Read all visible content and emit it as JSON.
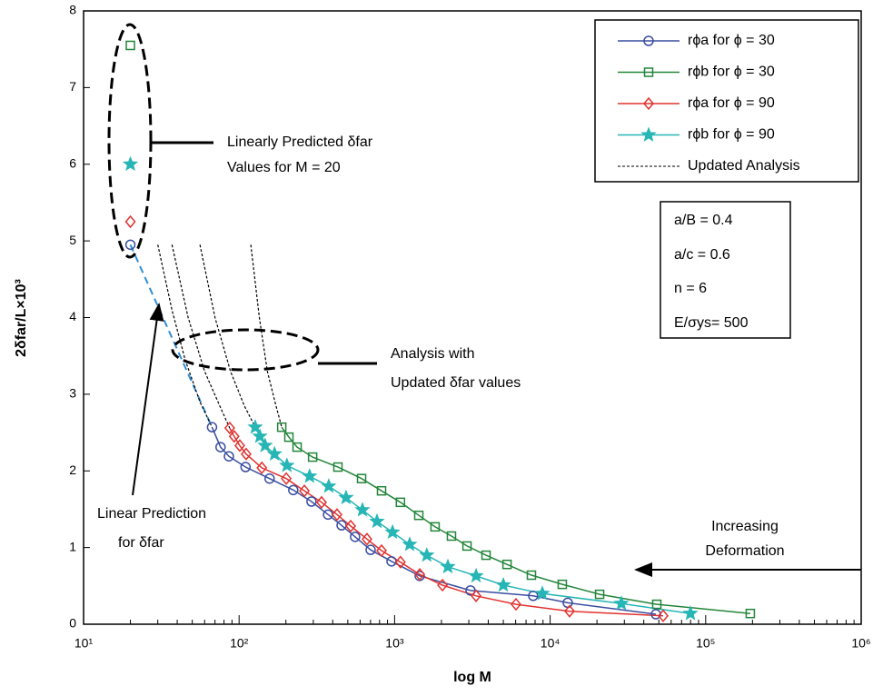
{
  "chart_data": {
    "type": "line",
    "x_label": "log M",
    "y_label": "2δfar/L×10³",
    "xscale": "log",
    "xlim": [
      10,
      1000000
    ],
    "xticks": [
      {
        "value": 10,
        "label": "10¹"
      },
      {
        "value": 100,
        "label": "10²"
      },
      {
        "value": 1000,
        "label": "10³"
      },
      {
        "value": 10000,
        "label": "10⁴"
      },
      {
        "value": 100000,
        "label": "10⁵"
      },
      {
        "value": 1000000,
        "label": "10⁶"
      }
    ],
    "ylim": [
      0,
      8
    ],
    "yticks": [
      0,
      1,
      2,
      3,
      4,
      5,
      6,
      7,
      8
    ],
    "predicted_x": 20,
    "series": [
      {
        "name": "rϕa for ϕ = 30",
        "color": "#3b4ea0",
        "marker": "circle",
        "predicted": 4.95,
        "x": [
          67,
          76,
          86,
          110,
          157,
          223,
          292,
          373,
          456,
          557,
          701,
          955,
          1449,
          3076,
          7780,
          12970,
          47860
        ],
        "values": [
          2.57,
          2.31,
          2.19,
          2.05,
          1.9,
          1.75,
          1.6,
          1.43,
          1.29,
          1.14,
          0.97,
          0.82,
          0.63,
          0.44,
          0.37,
          0.28,
          0.13
        ]
      },
      {
        "name": "rϕb for ϕ = 30",
        "color": "#23853a",
        "marker": "square",
        "predicted": 7.55,
        "x": [
          188,
          209,
          236,
          297,
          432,
          613,
          824,
          1090,
          1430,
          1820,
          2320,
          2920,
          3870,
          5280,
          7580,
          11970,
          20800,
          48500,
          193600
        ],
        "values": [
          2.57,
          2.44,
          2.31,
          2.18,
          2.05,
          1.9,
          1.74,
          1.59,
          1.42,
          1.27,
          1.15,
          1.02,
          0.9,
          0.78,
          0.64,
          0.52,
          0.39,
          0.26,
          0.14
        ]
      },
      {
        "name": "rϕa for ϕ = 90",
        "color": "#e0332f",
        "marker": "diamond",
        "predicted": 5.25,
        "x": [
          87,
          93,
          101,
          111,
          140,
          201,
          263,
          339,
          426,
          522,
          664,
          824,
          1090,
          1450,
          2030,
          3340,
          6030,
          13330,
          53300
        ],
        "values": [
          2.56,
          2.45,
          2.33,
          2.22,
          2.04,
          1.9,
          1.74,
          1.59,
          1.43,
          1.28,
          1.11,
          0.96,
          0.81,
          0.65,
          0.51,
          0.37,
          0.26,
          0.17,
          0.11
        ]
      },
      {
        "name": "rϕb for ϕ = 90",
        "color": "#27b5b5",
        "marker": "star",
        "predicted": 6.0,
        "x": [
          127,
          136,
          147,
          169,
          203,
          284,
          377,
          487,
          621,
          770,
          969,
          1250,
          1610,
          2200,
          3340,
          5000,
          8910,
          28700,
          79800
        ],
        "values": [
          2.57,
          2.45,
          2.33,
          2.22,
          2.07,
          1.93,
          1.8,
          1.65,
          1.49,
          1.34,
          1.2,
          1.04,
          0.9,
          0.75,
          0.63,
          0.51,
          0.4,
          0.27,
          0.14
        ]
      }
    ],
    "updated_analysis": {
      "name": "Updated Analysis",
      "color": "#000000",
      "curves": [
        {
          "x": [
            30,
            37,
            45,
            56,
            67
          ],
          "values": [
            4.95,
            4.1,
            3.45,
            2.9,
            2.57
          ]
        },
        {
          "x": [
            37,
            47,
            60,
            75,
            87
          ],
          "values": [
            4.95,
            4.0,
            3.3,
            2.85,
            2.56
          ]
        },
        {
          "x": [
            56,
            70,
            88,
            108,
            127
          ],
          "values": [
            4.95,
            4.0,
            3.3,
            2.85,
            2.57
          ]
        },
        {
          "x": [
            119,
            135,
            152,
            170,
            188
          ],
          "values": [
            4.95,
            4.0,
            3.3,
            2.9,
            2.57
          ]
        }
      ]
    },
    "linear_prediction": {
      "color": "#2f8fd8",
      "x": [
        20,
        67
      ],
      "values": [
        4.95,
        2.57
      ]
    },
    "parameters": [
      "a/B = 0.4",
      "a/c = 0.6",
      "n = 6",
      "E/σys= 500"
    ],
    "annotations": {
      "predicted": [
        "Linearly Predicted δfar",
        "Values for M = 20"
      ],
      "updated": [
        "Analysis with",
        "Updated δfar values"
      ],
      "linear": [
        "Linear Prediction",
        "for δfar"
      ],
      "deformation": [
        "Increasing",
        "Deformation"
      ]
    }
  }
}
